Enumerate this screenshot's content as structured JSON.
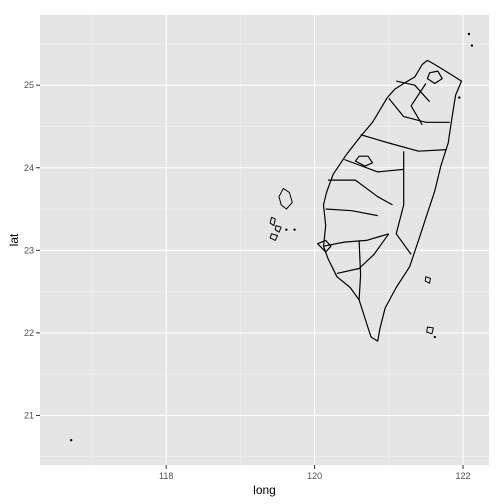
{
  "chart_data": {
    "type": "map",
    "xlabel": "long",
    "ylabel": "lat",
    "xlim": [
      116.3,
      122.35
    ],
    "ylim": [
      20.4,
      25.85
    ],
    "x_ticks": [
      118,
      120,
      122
    ],
    "y_ticks": [
      21,
      22,
      23,
      24,
      25
    ],
    "x_tick_labels": [
      "118",
      "120",
      "122"
    ],
    "y_tick_labels": [
      "21",
      "22",
      "23",
      "24",
      "25"
    ],
    "grid": true,
    "colors": {
      "panel": "#e5e5e5",
      "grid_major": "#ffffff",
      "grid_minor": "#f2f2f2",
      "outline": "#000000"
    },
    "mainland_outline": [
      [
        121.52,
        25.3
      ],
      [
        121.62,
        25.25
      ],
      [
        121.8,
        25.15
      ],
      [
        121.98,
        25.05
      ],
      [
        121.9,
        24.88
      ],
      [
        121.85,
        24.6
      ],
      [
        121.8,
        24.3
      ],
      [
        121.7,
        24.02
      ],
      [
        121.62,
        23.72
      ],
      [
        121.52,
        23.45
      ],
      [
        121.4,
        23.12
      ],
      [
        121.28,
        22.8
      ],
      [
        121.1,
        22.55
      ],
      [
        120.95,
        22.3
      ],
      [
        120.88,
        22.05
      ],
      [
        120.85,
        21.9
      ],
      [
        120.76,
        21.95
      ],
      [
        120.7,
        22.12
      ],
      [
        120.6,
        22.4
      ],
      [
        120.48,
        22.55
      ],
      [
        120.3,
        22.68
      ],
      [
        120.18,
        22.9
      ],
      [
        120.12,
        23.05
      ],
      [
        120.15,
        23.3
      ],
      [
        120.12,
        23.55
      ],
      [
        120.16,
        23.7
      ],
      [
        120.25,
        23.92
      ],
      [
        120.42,
        24.15
      ],
      [
        120.62,
        24.38
      ],
      [
        120.78,
        24.55
      ],
      [
        120.88,
        24.7
      ],
      [
        120.98,
        24.85
      ],
      [
        121.08,
        24.95
      ],
      [
        121.2,
        25.02
      ],
      [
        121.35,
        25.1
      ],
      [
        121.45,
        25.25
      ],
      [
        121.52,
        25.3
      ]
    ],
    "boundaries": [
      [
        [
          121.0,
          24.84
        ],
        [
          121.2,
          24.62
        ],
        [
          121.5,
          24.55
        ],
        [
          121.82,
          24.55
        ]
      ],
      [
        [
          120.62,
          24.4
        ],
        [
          121.0,
          24.3
        ],
        [
          121.4,
          24.2
        ],
        [
          121.78,
          24.22
        ]
      ],
      [
        [
          120.4,
          24.1
        ],
        [
          120.85,
          23.95
        ],
        [
          121.2,
          23.98
        ]
      ],
      [
        [
          121.2,
          24.2
        ],
        [
          121.2,
          23.55
        ],
        [
          121.1,
          23.2
        ],
        [
          121.3,
          22.95
        ]
      ],
      [
        [
          120.18,
          23.85
        ],
        [
          120.55,
          23.85
        ],
        [
          120.85,
          23.65
        ],
        [
          121.05,
          23.55
        ]
      ],
      [
        [
          120.15,
          23.5
        ],
        [
          120.5,
          23.48
        ],
        [
          120.85,
          23.42
        ]
      ],
      [
        [
          120.12,
          23.05
        ],
        [
          120.4,
          23.1
        ],
        [
          120.7,
          23.12
        ],
        [
          121.0,
          23.2
        ]
      ],
      [
        [
          120.3,
          22.72
        ],
        [
          120.6,
          22.78
        ],
        [
          120.8,
          22.95
        ],
        [
          121.0,
          23.2
        ]
      ],
      [
        [
          120.6,
          22.4
        ],
        [
          120.62,
          22.7
        ],
        [
          120.6,
          23.12
        ]
      ],
      [
        [
          121.55,
          24.8
        ],
        [
          121.35,
          25.0
        ],
        [
          121.1,
          25.05
        ]
      ],
      [
        [
          121.45,
          24.52
        ],
        [
          121.3,
          24.75
        ],
        [
          121.5,
          25.02
        ]
      ]
    ],
    "inner_loops": [
      [
        [
          121.52,
          25.08
        ],
        [
          121.62,
          25.02
        ],
        [
          121.72,
          25.08
        ],
        [
          121.66,
          25.17
        ],
        [
          121.55,
          25.15
        ],
        [
          121.52,
          25.08
        ]
      ],
      [
        [
          120.55,
          24.08
        ],
        [
          120.68,
          24.02
        ],
        [
          120.78,
          24.06
        ],
        [
          120.72,
          24.14
        ],
        [
          120.6,
          24.14
        ],
        [
          120.55,
          24.08
        ]
      ],
      [
        [
          120.04,
          23.08
        ],
        [
          120.15,
          22.98
        ],
        [
          120.22,
          23.05
        ],
        [
          120.15,
          23.12
        ],
        [
          120.04,
          23.08
        ]
      ]
    ],
    "islands": [
      [
        [
          119.58,
          23.75
        ],
        [
          119.66,
          23.7
        ],
        [
          119.7,
          23.58
        ],
        [
          119.62,
          23.5
        ],
        [
          119.55,
          23.55
        ],
        [
          119.52,
          23.65
        ],
        [
          119.58,
          23.75
        ]
      ],
      [
        [
          119.42,
          23.4
        ],
        [
          119.47,
          23.38
        ],
        [
          119.45,
          23.3
        ],
        [
          119.4,
          23.33
        ],
        [
          119.42,
          23.4
        ]
      ],
      [
        [
          119.48,
          23.3
        ],
        [
          119.55,
          23.28
        ],
        [
          119.52,
          23.22
        ],
        [
          119.47,
          23.25
        ],
        [
          119.48,
          23.3
        ]
      ],
      [
        [
          119.42,
          23.2
        ],
        [
          119.5,
          23.18
        ],
        [
          119.47,
          23.12
        ],
        [
          119.4,
          23.15
        ],
        [
          119.42,
          23.2
        ]
      ],
      [
        [
          121.5,
          22.68
        ],
        [
          121.56,
          22.66
        ],
        [
          121.55,
          22.6
        ],
        [
          121.49,
          22.63
        ],
        [
          121.5,
          22.68
        ]
      ],
      [
        [
          121.52,
          22.07
        ],
        [
          121.6,
          22.06
        ],
        [
          121.58,
          21.99
        ],
        [
          121.51,
          22.01
        ],
        [
          121.52,
          22.07
        ]
      ]
    ],
    "dots": [
      [
        119.62,
        23.25
      ],
      [
        119.73,
        23.25
      ],
      [
        121.62,
        21.95
      ],
      [
        121.95,
        24.85
      ],
      [
        122.08,
        25.62
      ],
      [
        122.12,
        25.48
      ],
      [
        116.72,
        20.7
      ]
    ]
  }
}
